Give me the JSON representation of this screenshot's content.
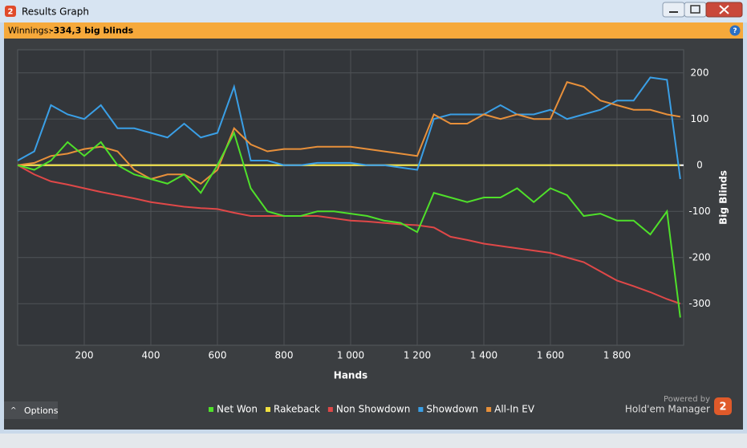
{
  "window": {
    "title": "Results Graph",
    "logo": "2"
  },
  "header": {
    "label": "Winnings:",
    "value": "-334,3 big blinds"
  },
  "chart_data": {
    "type": "line",
    "x_label": "Hands",
    "y_label": "Big Blinds",
    "x": [
      0,
      50,
      100,
      150,
      200,
      250,
      300,
      350,
      400,
      450,
      500,
      550,
      600,
      650,
      700,
      750,
      800,
      850,
      900,
      950,
      1000,
      1050,
      1100,
      1150,
      1200,
      1250,
      1300,
      1350,
      1400,
      1450,
      1500,
      1550,
      1600,
      1650,
      1700,
      1750,
      1800,
      1850,
      1900,
      1950,
      1990
    ],
    "series": [
      {
        "name": "Net Won",
        "color": "#4fe02a",
        "values": [
          0,
          -10,
          10,
          50,
          20,
          50,
          0,
          -20,
          -30,
          -40,
          -20,
          -60,
          0,
          70,
          -50,
          -100,
          -110,
          -110,
          -100,
          -100,
          -105,
          -110,
          -120,
          -125,
          -145,
          -60,
          -70,
          -80,
          -70,
          -70,
          -50,
          -80,
          -50,
          -65,
          -110,
          -105,
          -120,
          -120,
          -150,
          -100,
          -330
        ]
      },
      {
        "name": "Rakeback",
        "color": "#f0e040",
        "values": [
          0,
          0,
          0,
          0,
          0,
          0,
          0,
          0,
          0,
          0,
          0,
          0,
          0,
          0,
          0,
          0,
          0,
          0,
          0,
          0,
          0,
          0,
          0,
          0,
          0,
          0,
          0,
          0,
          0,
          0,
          0,
          0,
          0,
          0,
          0,
          0,
          0,
          0,
          0,
          0,
          0
        ]
      },
      {
        "name": "Non Showdown",
        "color": "#e04848",
        "values": [
          0,
          -20,
          -35,
          -42,
          -50,
          -58,
          -65,
          -72,
          -80,
          -85,
          -90,
          -93,
          -95,
          -103,
          -110,
          -110,
          -110,
          -110,
          -110,
          -115,
          -120,
          -122,
          -125,
          -128,
          -130,
          -135,
          -155,
          -162,
          -170,
          -175,
          -180,
          -185,
          -190,
          -200,
          -210,
          -230,
          -250,
          -262,
          -275,
          -290,
          -300
        ]
      },
      {
        "name": "Showdown",
        "color": "#3a9fe6",
        "values": [
          10,
          30,
          130,
          110,
          100,
          130,
          80,
          80,
          70,
          60,
          90,
          60,
          70,
          170,
          10,
          10,
          0,
          0,
          5,
          5,
          5,
          0,
          0,
          -5,
          -10,
          100,
          110,
          110,
          110,
          130,
          110,
          110,
          120,
          100,
          110,
          120,
          140,
          140,
          190,
          185,
          -30
        ]
      },
      {
        "name": "All-In EV",
        "color": "#e8903a",
        "values": [
          0,
          5,
          20,
          25,
          35,
          40,
          30,
          -10,
          -30,
          -20,
          -20,
          -40,
          -10,
          80,
          45,
          30,
          35,
          35,
          40,
          40,
          40,
          35,
          30,
          25,
          20,
          110,
          90,
          90,
          110,
          100,
          110,
          100,
          100,
          180,
          170,
          140,
          130,
          120,
          120,
          110,
          105
        ]
      }
    ],
    "xlim": [
      0,
      2000
    ],
    "ylim": [
      -390,
      250
    ],
    "xticks": [
      200,
      400,
      600,
      800,
      {
        "value": 1000,
        "label": "1 000"
      },
      {
        "value": 1200,
        "label": "1 200"
      },
      {
        "value": 1400,
        "label": "1 400"
      },
      {
        "value": 1600,
        "label": "1 600"
      },
      {
        "value": 1800,
        "label": "1 800"
      }
    ],
    "yticks": [
      -300,
      -200,
      -100,
      0,
      100,
      200
    ],
    "grid": true,
    "legend": "bottom"
  },
  "footer": {
    "options": "Options",
    "powered_by": "Powered by",
    "brand": "Hold'em Manager"
  }
}
